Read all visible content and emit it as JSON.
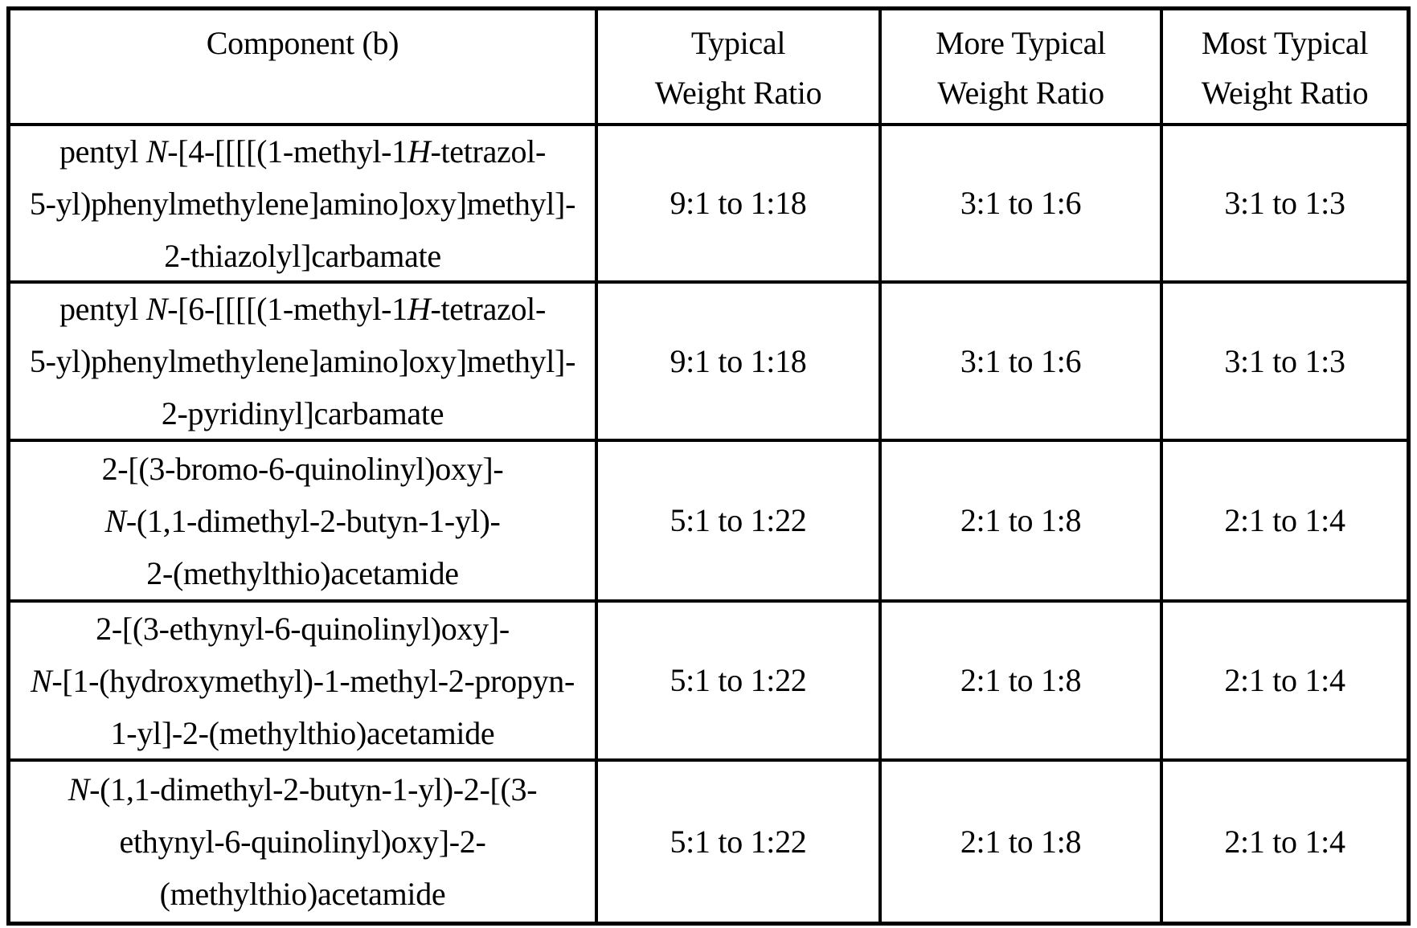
{
  "colors": {
    "background": "#ffffff",
    "border": "#000000",
    "text": "#000000"
  },
  "table": {
    "headers": [
      {
        "id": "component",
        "lines": [
          "Component (b)"
        ]
      },
      {
        "id": "typical",
        "lines": [
          "Typical",
          "Weight Ratio"
        ]
      },
      {
        "id": "more_typical",
        "lines": [
          "More Typical",
          "Weight Ratio"
        ]
      },
      {
        "id": "most_typical",
        "lines": [
          "Most Typical",
          "Weight Ratio"
        ]
      }
    ],
    "rows": [
      {
        "component_lines": [
          "pentyl *N*-[4-[[[[(1-methyl-1*H*-tetrazol-",
          "5-yl)phenylmethylene]amino]oxy]methyl]-",
          "2-thiazolyl]carbamate"
        ],
        "typical": "9:1 to 1:18",
        "more_typical": "3:1 to 1:6",
        "most_typical": "3:1 to 1:3"
      },
      {
        "component_lines": [
          "pentyl *N*-[6-[[[[(1-methyl-1*H*-tetrazol-",
          "5-yl)phenylmethylene]amino]oxy]methyl]-",
          "2-pyridinyl]carbamate"
        ],
        "typical": "9:1 to 1:18",
        "more_typical": "3:1 to 1:6",
        "most_typical": "3:1 to 1:3"
      },
      {
        "component_lines": [
          "2-[(3-bromo-6-quinolinyl)oxy]-",
          "*N*-(1,1-dimethyl-2-butyn-1-yl)-",
          "2-(methylthio)acetamide"
        ],
        "typical": "5:1 to 1:22",
        "more_typical": "2:1 to 1:8",
        "most_typical": "2:1 to 1:4"
      },
      {
        "component_lines": [
          "2-[(3-ethynyl-6-quinolinyl)oxy]-",
          "*N*-[1-(hydroxymethyl)-1-methyl-2-propyn-",
          "1-yl]-2-(methylthio)acetamide"
        ],
        "typical": "5:1 to 1:22",
        "more_typical": "2:1 to 1:8",
        "most_typical": "2:1 to 1:4"
      },
      {
        "component_lines": [
          "*N*-(1,1-dimethyl-2-butyn-1-yl)-2-[(3-",
          "ethynyl-6-quinolinyl)oxy]-2-",
          "(methylthio)acetamide"
        ],
        "typical": "5:1 to 1:22",
        "more_typical": "2:1 to 1:8",
        "most_typical": "2:1 to 1:4"
      }
    ]
  }
}
